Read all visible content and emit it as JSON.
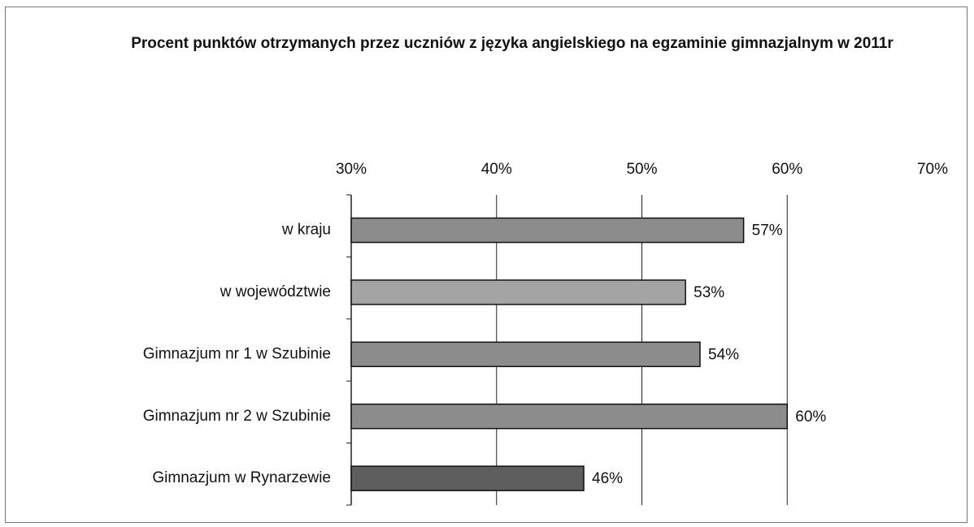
{
  "chart_data": {
    "type": "barh",
    "title": "Procent punktów otrzymanych przez uczniów z języka angielskiego na egzaminie gimnazjalnym w 2011r",
    "categories": [
      "w kraju",
      "w województwie",
      "Gimnazjum nr 1 w Szubinie",
      "Gimnazjum nr 2 w Szubinie",
      "Gimnazjum w Rynarzewie"
    ],
    "values": [
      57,
      53,
      54,
      60,
      46
    ],
    "value_labels": [
      "57%",
      "53%",
      "54%",
      "60%",
      "46%"
    ],
    "colors": [
      "#8c8c8c",
      "#a4a4a4",
      "#8c8c8c",
      "#8c8c8c",
      "#5e5e5e"
    ],
    "xlim": [
      30,
      70
    ],
    "xticks": [
      {
        "value": 30,
        "label": "30%"
      },
      {
        "value": 40,
        "label": "40%"
      },
      {
        "value": 50,
        "label": "50%"
      },
      {
        "value": 60,
        "label": "60%"
      },
      {
        "value": 70,
        "label": "70%"
      }
    ],
    "grid": true
  }
}
